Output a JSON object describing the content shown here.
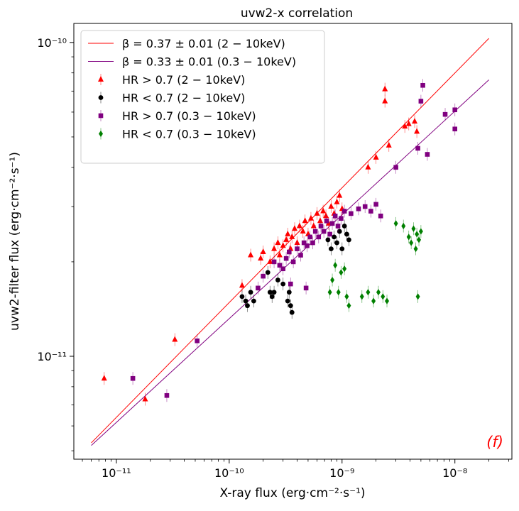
{
  "chart_data": {
    "type": "scatter",
    "title": "uvw2-x correlation",
    "xlabel": "X-ray flux (erg·cm⁻²·s⁻¹)",
    "ylabel": "uvw2-filter flux (erg·cm⁻²·s⁻¹)",
    "x_scale": "log",
    "y_scale": "log",
    "xlim": [
      4.2e-12,
      3.2e-08
    ],
    "ylim": [
      4.7e-12,
      1.15e-10
    ],
    "x_ticks": [
      {
        "value": 1e-11,
        "label": "10⁻¹¹"
      },
      {
        "value": 1e-10,
        "label": "10⁻¹⁰"
      },
      {
        "value": 1e-09,
        "label": "10⁻⁹"
      },
      {
        "value": 1e-08,
        "label": "10⁻⁸"
      }
    ],
    "y_ticks": [
      {
        "value": 1e-11,
        "label": "10⁻¹¹"
      },
      {
        "value": 1e-10,
        "label": "10⁻¹⁰"
      }
    ],
    "panel_label": "(f)",
    "legend_position": "upper-left",
    "lines": [
      {
        "name": "β = 0.37 ± 0.01 (2 − 10keV)",
        "color": "#ff0000",
        "points": [
          [
            6e-12,
            5.3e-12
          ],
          [
            2e-08,
            1.03e-10
          ]
        ]
      },
      {
        "name": "β = 0.33 ± 0.01 (0.3 − 10keV)",
        "color": "#800080",
        "points": [
          [
            6e-12,
            5.2e-12
          ],
          [
            2e-08,
            7.6e-11
          ]
        ]
      }
    ],
    "series": [
      {
        "name": "HR > 0.7 (2 − 10keV)",
        "color": "#ff0000",
        "marker": "triangle",
        "points": [
          [
            7.8e-12,
            8.5e-12
          ],
          [
            1.8e-11,
            7.3e-12
          ],
          [
            3.3e-11,
            1.13e-11
          ],
          [
            1.3e-10,
            1.68e-11
          ],
          [
            1.55e-10,
            2.1e-11
          ],
          [
            1.9e-10,
            2.05e-11
          ],
          [
            2e-10,
            2.15e-11
          ],
          [
            2.3e-10,
            2e-11
          ],
          [
            2.5e-10,
            2.2e-11
          ],
          [
            2.7e-10,
            2.3e-11
          ],
          [
            2.8e-10,
            2.1e-11
          ],
          [
            3e-10,
            2.25e-11
          ],
          [
            3.2e-10,
            2.35e-11
          ],
          [
            3.3e-10,
            2.45e-11
          ],
          [
            3.5e-10,
            2.2e-11
          ],
          [
            3.6e-10,
            2.4e-11
          ],
          [
            3.8e-10,
            2.55e-11
          ],
          [
            4e-10,
            2.3e-11
          ],
          [
            4.2e-10,
            2.6e-11
          ],
          [
            4.5e-10,
            2.5e-11
          ],
          [
            4.7e-10,
            2.7e-11
          ],
          [
            5e-10,
            2.45e-11
          ],
          [
            5.3e-10,
            2.75e-11
          ],
          [
            5.6e-10,
            2.6e-11
          ],
          [
            6e-10,
            2.85e-11
          ],
          [
            6.4e-10,
            2.7e-11
          ],
          [
            6.8e-10,
            2.9e-11
          ],
          [
            7.2e-10,
            2.8e-11
          ],
          [
            7.6e-10,
            2.65e-11
          ],
          [
            8e-10,
            3e-11
          ],
          [
            8.5e-10,
            2.85e-11
          ],
          [
            9e-10,
            3.1e-11
          ],
          [
            9.5e-10,
            3.25e-11
          ],
          [
            1e-09,
            2.95e-11
          ],
          [
            1.7e-09,
            4e-11
          ],
          [
            2e-09,
            4.3e-11
          ],
          [
            2.4e-09,
            6.5e-11
          ],
          [
            2.4e-09,
            7.1e-11
          ],
          [
            2.6e-09,
            4.7e-11
          ],
          [
            3.6e-09,
            5.4e-11
          ],
          [
            3.9e-09,
            5.5e-11
          ],
          [
            4.4e-09,
            5.6e-11
          ],
          [
            4.6e-09,
            5.2e-11
          ]
        ]
      },
      {
        "name": "HR < 0.7 (2 − 10keV)",
        "color": "#000000",
        "marker": "circle",
        "points": [
          [
            1.3e-10,
            1.55e-11
          ],
          [
            1.4e-10,
            1.5e-11
          ],
          [
            1.45e-10,
            1.45e-11
          ],
          [
            1.55e-10,
            1.6e-11
          ],
          [
            1.65e-10,
            1.5e-11
          ],
          [
            2.2e-10,
            1.85e-11
          ],
          [
            2.3e-10,
            1.6e-11
          ],
          [
            2.4e-10,
            1.55e-11
          ],
          [
            2.5e-10,
            1.6e-11
          ],
          [
            2.7e-10,
            1.75e-11
          ],
          [
            3e-10,
            1.7e-11
          ],
          [
            3.3e-10,
            1.5e-11
          ],
          [
            3.5e-10,
            1.45e-11
          ],
          [
            3.4e-10,
            1.6e-11
          ],
          [
            3.6e-10,
            1.38e-11
          ],
          [
            7.5e-10,
            2.35e-11
          ],
          [
            8e-10,
            2.2e-11
          ],
          [
            8.5e-10,
            2.4e-11
          ],
          [
            9e-10,
            2.3e-11
          ],
          [
            9.5e-10,
            2.5e-11
          ],
          [
            1e-09,
            2.2e-11
          ],
          [
            1.05e-09,
            2.6e-11
          ],
          [
            1.1e-09,
            2.45e-11
          ],
          [
            1.15e-09,
            2.35e-11
          ]
        ]
      },
      {
        "name": "HR > 0.7 (0.3 − 10keV)",
        "color": "#800080",
        "marker": "square",
        "points": [
          [
            1.4e-11,
            8.5e-12
          ],
          [
            2.8e-11,
            7.5e-12
          ],
          [
            5.2e-11,
            1.12e-11
          ],
          [
            1.8e-10,
            1.65e-11
          ],
          [
            2e-10,
            1.8e-11
          ],
          [
            2.5e-10,
            2e-11
          ],
          [
            2.8e-10,
            1.95e-11
          ],
          [
            3e-10,
            1.9e-11
          ],
          [
            3.2e-10,
            2.05e-11
          ],
          [
            3.4e-10,
            2.15e-11
          ],
          [
            3.7e-10,
            2e-11
          ],
          [
            4e-10,
            2.2e-11
          ],
          [
            4.3e-10,
            2.1e-11
          ],
          [
            4.6e-10,
            2.3e-11
          ],
          [
            4.9e-10,
            2.25e-11
          ],
          [
            5.2e-10,
            2.4e-11
          ],
          [
            5.5e-10,
            2.3e-11
          ],
          [
            5.8e-10,
            2.5e-11
          ],
          [
            6.2e-10,
            2.4e-11
          ],
          [
            6.5e-10,
            2.6e-11
          ],
          [
            6.9e-10,
            2.5e-11
          ],
          [
            7.3e-10,
            2.7e-11
          ],
          [
            7.8e-10,
            2.45e-11
          ],
          [
            8.2e-10,
            2.65e-11
          ],
          [
            8.7e-10,
            2.8e-11
          ],
          [
            9.2e-10,
            2.6e-11
          ],
          [
            9.8e-10,
            2.75e-11
          ],
          [
            1.05e-09,
            2.9e-11
          ],
          [
            1.2e-09,
            2.85e-11
          ],
          [
            1.4e-09,
            2.95e-11
          ],
          [
            1.6e-09,
            3e-11
          ],
          [
            1.8e-09,
            2.9e-11
          ],
          [
            2e-09,
            3.05e-11
          ],
          [
            2.2e-09,
            2.8e-11
          ],
          [
            4.8e-10,
            1.65e-11
          ],
          [
            3.5e-10,
            1.7e-11
          ],
          [
            3e-09,
            4e-11
          ],
          [
            4.7e-09,
            4.6e-11
          ],
          [
            5e-09,
            6.5e-11
          ],
          [
            5.2e-09,
            7.3e-11
          ],
          [
            5.7e-09,
            4.4e-11
          ],
          [
            8.2e-09,
            5.9e-11
          ],
          [
            1e-08,
            6.1e-11
          ],
          [
            1e-08,
            5.3e-11
          ]
        ]
      },
      {
        "name": "HR < 0.7 (0.3 − 10keV)",
        "color": "#008000",
        "marker": "diamond",
        "points": [
          [
            7.8e-10,
            1.6e-11
          ],
          [
            8.2e-10,
            1.75e-11
          ],
          [
            8.7e-10,
            1.95e-11
          ],
          [
            9.3e-10,
            1.6e-11
          ],
          [
            9.8e-10,
            1.85e-11
          ],
          [
            1.05e-09,
            1.9e-11
          ],
          [
            1.1e-09,
            1.55e-11
          ],
          [
            1.15e-09,
            1.45e-11
          ],
          [
            1.5e-09,
            1.55e-11
          ],
          [
            1.7e-09,
            1.6e-11
          ],
          [
            1.9e-09,
            1.5e-11
          ],
          [
            2.1e-09,
            1.6e-11
          ],
          [
            2.3e-09,
            1.55e-11
          ],
          [
            2.5e-09,
            1.5e-11
          ],
          [
            3e-09,
            2.65e-11
          ],
          [
            3.5e-09,
            2.6e-11
          ],
          [
            3.9e-09,
            2.4e-11
          ],
          [
            4.1e-09,
            2.3e-11
          ],
          [
            4.3e-09,
            2.55e-11
          ],
          [
            4.5e-09,
            2.2e-11
          ],
          [
            4.6e-09,
            2.45e-11
          ],
          [
            4.8e-09,
            2.35e-11
          ],
          [
            5e-09,
            2.5e-11
          ],
          [
            4.7e-09,
            1.55e-11
          ]
        ]
      }
    ]
  }
}
